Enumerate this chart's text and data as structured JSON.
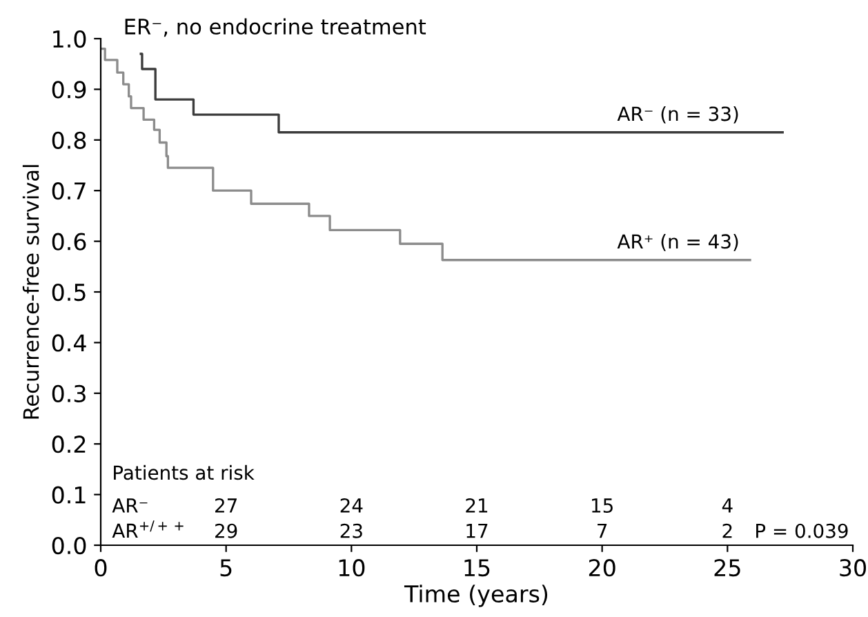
{
  "chart_data": {
    "type": "step",
    "title": "ER⁻, no endocrine treatment",
    "xlabel": "Time (years)",
    "ylabel": "Recurrence-free survival",
    "xlim": [
      0,
      30
    ],
    "xticks": [
      0,
      5,
      10,
      15,
      20,
      25,
      30
    ],
    "ylim": [
      0,
      1
    ],
    "yticks": [
      {
        "value": 0,
        "label": "0.0"
      },
      0.1,
      0.2,
      0.3,
      0.4,
      0.5,
      0.6,
      0.7,
      0.8,
      0.9,
      {
        "value": 1,
        "label": "1.0"
      }
    ],
    "grid": false,
    "legend": false,
    "marker": "none",
    "line_style": "solid",
    "series": [
      {
        "color": "#3c3c3c",
        "x": [
          1.6,
          1.65,
          2.18,
          3.7,
          7.1,
          27.2
        ],
        "values": [
          0.97,
          0.94,
          0.88,
          0.85,
          0.815,
          0.815
        ]
      },
      {
        "color": "#8c8c8c",
        "x": [
          0,
          0.17,
          0.66,
          0.9,
          1.12,
          1.21,
          1.71,
          2.13,
          2.35,
          2.62,
          2.68,
          4.48,
          6.0,
          8.31,
          9.14,
          11.94,
          13.63,
          25.9
        ],
        "values": [
          0.98,
          0.958,
          0.933,
          0.91,
          0.886,
          0.863,
          0.84,
          0.82,
          0.795,
          0.768,
          0.745,
          0.7,
          0.674,
          0.65,
          0.622,
          0.595,
          0.563,
          0.563
        ]
      }
    ],
    "annotations": [
      {
        "text": "AR⁻ (n = 33)",
        "x": 20.6,
        "y": 0.83
      },
      {
        "text": "AR⁺ (n = 43)",
        "x": 20.6,
        "y": 0.578
      },
      "Patients at risk",
      "AR⁻",
      "AR$^{+/++}$",
      "27",
      "24",
      "21",
      "15",
      "4",
      "29",
      "23",
      "17",
      "7",
      "2",
      "P = 0.039"
    ]
  }
}
